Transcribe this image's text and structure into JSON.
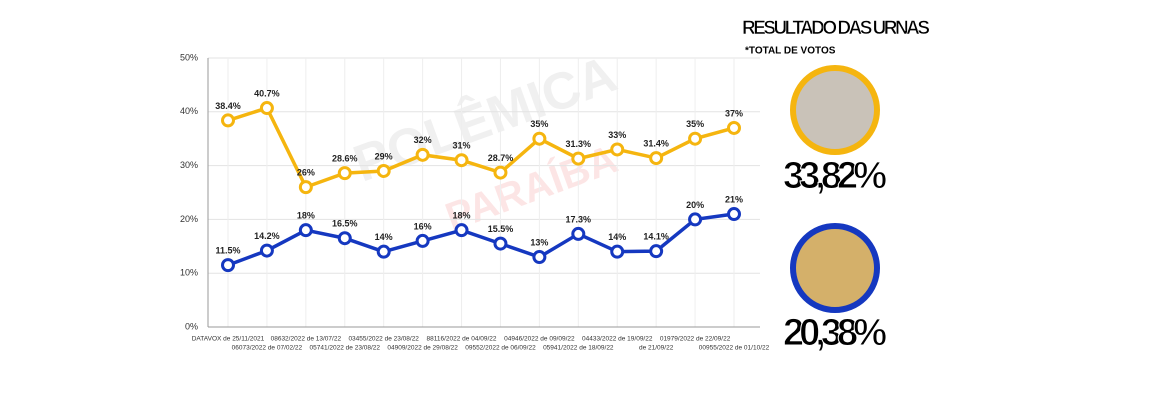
{
  "chart_data": {
    "type": "line",
    "categories": [
      "DATAVOX de 25/11/2021",
      "06073/2022 de 07/02/22",
      "08632/2022 de 13/07/22",
      "05741/2022 de 23/08/22",
      "03455/2022 de 23/08/22",
      "04909/2022 de 29/08/22",
      "88116/2022 de 04/09/22",
      "09552/2022 de 06/09/22",
      "04946/2022 de 09/09/22",
      "05941/2022 de 18/09/22",
      "04433/2022 de 19/09/22",
      "de 21/09/22",
      "01979/2022 de 22/09/22",
      "00955/2022 de 01/10/22"
    ],
    "series": [
      {
        "color": "#f5b50f",
        "values": [
          38.4,
          40.7,
          26,
          28.6,
          29,
          32,
          31,
          28.7,
          35,
          31.3,
          33,
          31.4,
          35,
          37
        ],
        "value_labels": [
          "38.4%",
          "40.7%",
          "26%",
          "28.6%",
          "29%",
          "32%",
          "31%",
          "28.7%",
          "35%",
          "31.3%",
          "33%",
          "31.4%",
          "35%",
          "37%"
        ]
      },
      {
        "color": "#1538c0",
        "values": [
          11.5,
          14.2,
          18,
          16.5,
          14,
          16,
          18,
          15.5,
          13,
          17.3,
          14,
          14.1,
          20,
          21
        ],
        "value_labels": [
          "11.5%",
          "14.2%",
          "18%",
          "16.5%",
          "14%",
          "16%",
          "18%",
          "15.5%",
          "13%",
          "17.3%",
          "14%",
          "14.1%",
          "20%",
          "21%"
        ]
      }
    ],
    "ylim": [
      0,
      50
    ],
    "yticks": [
      {
        "value": 0,
        "label": "0%"
      },
      {
        "value": 10,
        "label": "10%"
      },
      {
        "value": 20,
        "label": "20%"
      },
      {
        "value": 30,
        "label": "30%"
      },
      {
        "value": 40,
        "label": "40%"
      },
      {
        "value": 50,
        "label": "50%"
      }
    ],
    "grid": true,
    "panel_title": "RESULTADO DAS URNAS",
    "panel_note": "*TOTAL DE VOTOS",
    "results": [
      "33,82%",
      "20,38%"
    ],
    "watermark": [
      "POLÊMICA",
      "PARAÍBA"
    ]
  }
}
